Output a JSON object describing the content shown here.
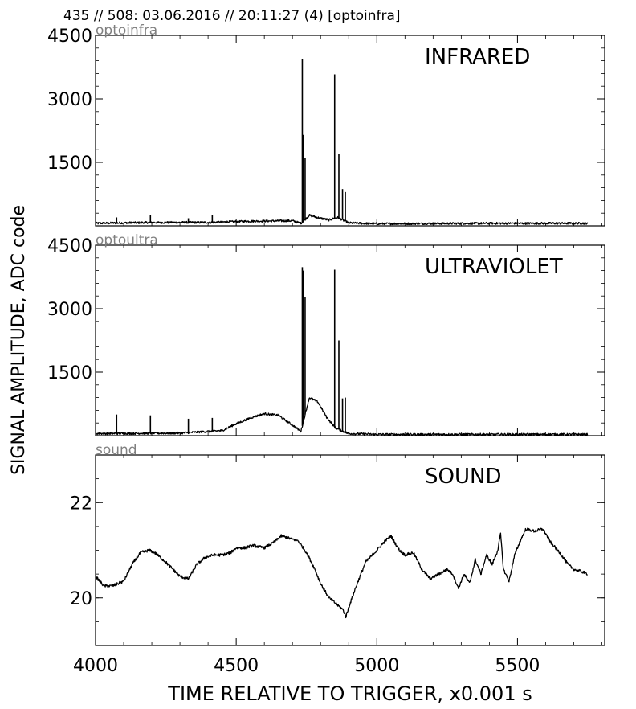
{
  "header": "435 // 508:   03.06.2016 // 20:11:27 (4)  [optoinfra]",
  "ylabel": "SIGNAL AMPLITUDE,  ADC code",
  "xlabel": "TIME RELATIVE TO TRIGGER,   x0.001 s",
  "x_ticks": [
    "4000",
    "4500",
    "5000",
    "5500"
  ],
  "colors": {
    "line": "#000000",
    "source_label": "#808080",
    "background": "#ffffff"
  },
  "chart_data": [
    {
      "type": "line",
      "panel": "infrared",
      "title": "INFRARED",
      "source": "optoinfra",
      "xlim": [
        4000,
        5810
      ],
      "ylim": [
        0,
        4500
      ],
      "y_ticks": [
        "1500",
        "3000",
        "4500"
      ],
      "grid": false,
      "baseline": 50,
      "spikes": [
        {
          "x": 4075,
          "y": 200
        },
        {
          "x": 4195,
          "y": 250
        },
        {
          "x": 4330,
          "y": 180
        },
        {
          "x": 4415,
          "y": 260
        },
        {
          "x": 4735,
          "y": 3950
        },
        {
          "x": 4738,
          "y": 2150
        },
        {
          "x": 4745,
          "y": 1600
        },
        {
          "x": 4850,
          "y": 3580
        },
        {
          "x": 4865,
          "y": 1700
        },
        {
          "x": 4878,
          "y": 870
        },
        {
          "x": 4888,
          "y": 800
        }
      ],
      "series": [
        {
          "x": [
            4000,
            4200,
            4400,
            4550,
            4700,
            4730,
            4760,
            4800,
            4830,
            4860,
            4900,
            5000,
            5400,
            5750
          ],
          "y": [
            60,
            80,
            80,
            110,
            120,
            60,
            250,
            180,
            140,
            200,
            70,
            50,
            60,
            60
          ]
        }
      ]
    },
    {
      "type": "line",
      "panel": "ultraviolet",
      "title": "ULTRAVIOLET",
      "source": "optoultra",
      "xlim": [
        4000,
        5810
      ],
      "ylim": [
        0,
        4500
      ],
      "y_ticks": [
        "1500",
        "3000",
        "4500"
      ],
      "grid": false,
      "baseline": 40,
      "spikes": [
        {
          "x": 4075,
          "y": 500
        },
        {
          "x": 4195,
          "y": 480
        },
        {
          "x": 4330,
          "y": 400
        },
        {
          "x": 4415,
          "y": 420
        },
        {
          "x": 4735,
          "y": 3980
        },
        {
          "x": 4738,
          "y": 3900
        },
        {
          "x": 4745,
          "y": 3270
        },
        {
          "x": 4850,
          "y": 3920
        },
        {
          "x": 4865,
          "y": 2250
        },
        {
          "x": 4878,
          "y": 880
        },
        {
          "x": 4888,
          "y": 900
        }
      ],
      "series": [
        {
          "x": [
            4000,
            4300,
            4450,
            4500,
            4550,
            4600,
            4650,
            4700,
            4730,
            4760,
            4790,
            4820,
            4850,
            4880,
            4900,
            5000,
            5400,
            5750
          ],
          "y": [
            50,
            60,
            120,
            280,
            420,
            520,
            480,
            250,
            100,
            900,
            800,
            450,
            200,
            100,
            50,
            30,
            30,
            30
          ]
        }
      ]
    },
    {
      "type": "line",
      "panel": "sound",
      "title": "SOUND",
      "source": "sound",
      "xlim": [
        4000,
        5810
      ],
      "ylim": [
        19,
        23
      ],
      "y_ticks": [
        "20",
        "22"
      ],
      "grid": false,
      "series": [
        {
          "x": [
            4000,
            4030,
            4060,
            4100,
            4130,
            4160,
            4190,
            4210,
            4250,
            4300,
            4330,
            4360,
            4390,
            4420,
            4450,
            4480,
            4500,
            4530,
            4560,
            4600,
            4630,
            4660,
            4690,
            4720,
            4750,
            4780,
            4800,
            4830,
            4860,
            4880,
            4890,
            4900,
            4930,
            4960,
            5000,
            5030,
            5050,
            5080,
            5100,
            5130,
            5160,
            5190,
            5220,
            5250,
            5270,
            5290,
            5310,
            5330,
            5350,
            5370,
            5390,
            5410,
            5430,
            5440,
            5450,
            5470,
            5490,
            5510,
            5530,
            5560,
            5590,
            5620,
            5650,
            5680,
            5700,
            5730,
            5750
          ],
          "y": [
            20.45,
            20.25,
            20.25,
            20.35,
            20.7,
            20.95,
            21.0,
            20.95,
            20.75,
            20.45,
            20.4,
            20.7,
            20.85,
            20.9,
            20.9,
            20.95,
            21.05,
            21.05,
            21.1,
            21.05,
            21.15,
            21.3,
            21.25,
            21.2,
            20.95,
            20.6,
            20.3,
            20.0,
            19.85,
            19.75,
            19.6,
            19.8,
            20.3,
            20.75,
            21.0,
            21.2,
            21.3,
            21.0,
            20.9,
            20.95,
            20.6,
            20.4,
            20.5,
            20.6,
            20.5,
            20.2,
            20.5,
            20.3,
            20.8,
            20.5,
            20.9,
            20.7,
            21.0,
            21.35,
            20.6,
            20.35,
            20.9,
            21.2,
            21.45,
            21.4,
            21.45,
            21.15,
            20.95,
            20.7,
            20.6,
            20.55,
            20.5
          ]
        }
      ]
    }
  ]
}
